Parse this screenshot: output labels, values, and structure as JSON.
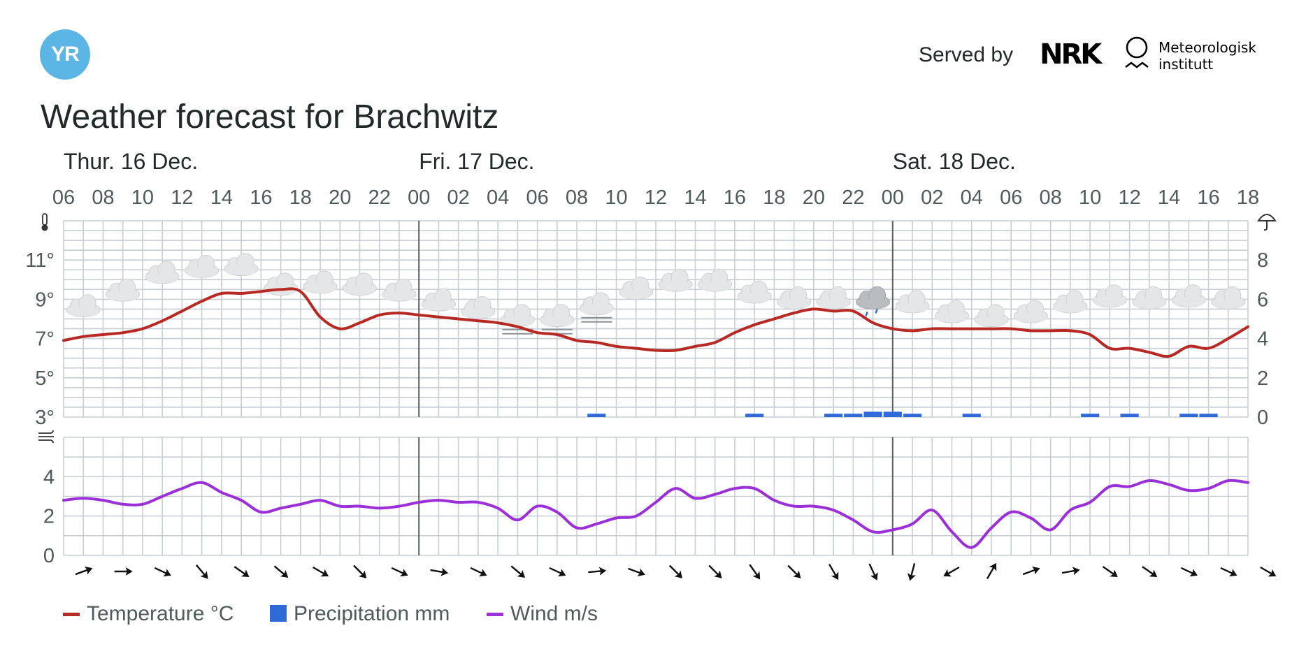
{
  "header": {
    "logo_text": "YR",
    "served_by": "Served by",
    "nrk_logo": "NRK",
    "met_text_1": "Meteorologisk",
    "met_text_2": "institutt"
  },
  "title": "Weather forecast for Brachwitz",
  "legend": {
    "temperature": "Temperature °C",
    "precipitation": "Precipitation mm",
    "wind": "Wind m/s"
  },
  "colors": {
    "temperature": "#b72a23",
    "precipitation": "#2e6bd9",
    "wind": "#9b30d9",
    "grid": "#c7ced4",
    "day_line": "#5a6166",
    "text": "#4f5a5e"
  },
  "chart_data": {
    "type": "line",
    "days": [
      {
        "label": "Thur. 16 Dec.",
        "start_index": 0
      },
      {
        "label": "Fri. 17 Dec.",
        "start_index": 18
      },
      {
        "label": "Sat. 18 Dec.",
        "start_index": 42
      }
    ],
    "hour_tick_labels": [
      "06",
      "08",
      "10",
      "12",
      "14",
      "16",
      "18",
      "20",
      "22",
      "00",
      "02",
      "04",
      "06",
      "08",
      "10",
      "12",
      "14",
      "16",
      "18",
      "20",
      "22",
      "00",
      "02",
      "04",
      "06",
      "08",
      "10",
      "12",
      "14",
      "16",
      "18"
    ],
    "hours": 61,
    "temperature": {
      "unit": "°C",
      "ylim": [
        3,
        13
      ],
      "ticks": [
        "3°",
        "5°",
        "7°",
        "9°",
        "11°"
      ],
      "tick_values": [
        3,
        5,
        7,
        9,
        11
      ],
      "values": [
        6.9,
        7.1,
        7.2,
        7.3,
        7.5,
        7.9,
        8.4,
        8.9,
        9.3,
        9.3,
        9.4,
        9.5,
        9.4,
        8.1,
        7.5,
        7.8,
        8.2,
        8.3,
        8.2,
        8.1,
        8.0,
        7.9,
        7.8,
        7.6,
        7.3,
        7.2,
        6.9,
        6.8,
        6.6,
        6.5,
        6.4,
        6.4,
        6.6,
        6.8,
        7.3,
        7.7,
        8.0,
        8.3,
        8.5,
        8.4,
        8.4,
        7.8,
        7.5,
        7.4,
        7.5,
        7.5,
        7.5,
        7.5,
        7.5,
        7.4,
        7.4,
        7.4,
        7.2,
        6.5,
        6.5,
        6.3,
        6.1,
        6.6,
        6.5,
        7.0,
        7.6
      ]
    },
    "precipitation": {
      "unit": "mm",
      "ylim": [
        0,
        10
      ],
      "ticks": [
        "0",
        "2",
        "4",
        "6",
        "8"
      ],
      "tick_values": [
        0,
        2,
        4,
        6,
        8
      ],
      "bars": [
        {
          "hour": 27,
          "value": 0.1
        },
        {
          "hour": 35,
          "value": 0.1
        },
        {
          "hour": 39,
          "value": 0.1
        },
        {
          "hour": 40,
          "value": 0.1
        },
        {
          "hour": 41,
          "value": 0.2
        },
        {
          "hour": 42,
          "value": 0.2
        },
        {
          "hour": 43,
          "value": 0.1
        },
        {
          "hour": 46,
          "value": 0.1
        },
        {
          "hour": 52,
          "value": 0.1
        },
        {
          "hour": 54,
          "value": 0.1
        },
        {
          "hour": 57,
          "value": 0.1
        },
        {
          "hour": 58,
          "value": 0.1
        }
      ]
    },
    "wind": {
      "unit": "m/s",
      "ylim": [
        0,
        6
      ],
      "ticks": [
        "0",
        "2",
        "4"
      ],
      "tick_values": [
        0,
        2,
        4
      ],
      "values": [
        2.8,
        2.9,
        2.8,
        2.6,
        2.6,
        3.0,
        3.4,
        3.7,
        3.2,
        2.8,
        2.2,
        2.4,
        2.6,
        2.8,
        2.5,
        2.5,
        2.4,
        2.5,
        2.7,
        2.8,
        2.7,
        2.7,
        2.4,
        1.8,
        2.5,
        2.2,
        1.4,
        1.6,
        1.9,
        2.0,
        2.7,
        3.4,
        2.9,
        3.1,
        3.4,
        3.4,
        2.8,
        2.5,
        2.5,
        2.3,
        1.8,
        1.2,
        1.3,
        1.6,
        2.3,
        1.2,
        0.4,
        1.4,
        2.2,
        1.9,
        1.3,
        2.3,
        2.7,
        3.5,
        3.5,
        3.8,
        3.6,
        3.3,
        3.4,
        3.8,
        3.7
      ]
    },
    "wind_direction_angles": [
      -20,
      0,
      25,
      50,
      35,
      40,
      30,
      45,
      25,
      10,
      25,
      40,
      25,
      -5,
      20,
      45,
      45,
      55,
      45,
      60,
      65,
      105,
      150,
      -60,
      -20,
      -10,
      35,
      35,
      25,
      25,
      30
    ],
    "weather_symbols": [
      {
        "hour": 1,
        "type": "cloud",
        "temp": 8.6
      },
      {
        "hour": 3,
        "type": "cloud",
        "temp": 9.4
      },
      {
        "hour": 5,
        "type": "cloud",
        "temp": 10.3
      },
      {
        "hour": 7,
        "type": "cloud",
        "temp": 10.6
      },
      {
        "hour": 9,
        "type": "cloud",
        "temp": 10.7
      },
      {
        "hour": 11,
        "type": "cloud",
        "temp": 9.7
      },
      {
        "hour": 13,
        "type": "cloud",
        "temp": 9.8
      },
      {
        "hour": 15,
        "type": "cloud",
        "temp": 9.7
      },
      {
        "hour": 17,
        "type": "cloud",
        "temp": 9.4
      },
      {
        "hour": 19,
        "type": "cloud",
        "temp": 8.9
      },
      {
        "hour": 21,
        "type": "cloud",
        "temp": 8.5
      },
      {
        "hour": 23,
        "type": "fog",
        "temp": 8.1
      },
      {
        "hour": 25,
        "type": "fog",
        "temp": 8.1
      },
      {
        "hour": 27,
        "type": "fog",
        "temp": 8.7
      },
      {
        "hour": 29,
        "type": "cloud",
        "temp": 9.5
      },
      {
        "hour": 31,
        "type": "cloud",
        "temp": 9.9
      },
      {
        "hour": 33,
        "type": "cloud",
        "temp": 9.9
      },
      {
        "hour": 35,
        "type": "cloud",
        "temp": 9.3
      },
      {
        "hour": 37,
        "type": "cloud",
        "temp": 9.0
      },
      {
        "hour": 39,
        "type": "cloud",
        "temp": 9.0
      },
      {
        "hour": 41,
        "type": "rain",
        "temp": 9.0
      },
      {
        "hour": 43,
        "type": "cloud",
        "temp": 8.8
      },
      {
        "hour": 45,
        "type": "cloud",
        "temp": 8.3
      },
      {
        "hour": 47,
        "type": "cloud",
        "temp": 8.1
      },
      {
        "hour": 49,
        "type": "cloud",
        "temp": 8.3
      },
      {
        "hour": 51,
        "type": "cloud",
        "temp": 8.8
      },
      {
        "hour": 53,
        "type": "cloud",
        "temp": 9.1
      },
      {
        "hour": 55,
        "type": "cloud",
        "temp": 9.0
      },
      {
        "hour": 57,
        "type": "cloud",
        "temp": 9.1
      },
      {
        "hour": 59,
        "type": "cloud",
        "temp": 9.0
      }
    ]
  }
}
